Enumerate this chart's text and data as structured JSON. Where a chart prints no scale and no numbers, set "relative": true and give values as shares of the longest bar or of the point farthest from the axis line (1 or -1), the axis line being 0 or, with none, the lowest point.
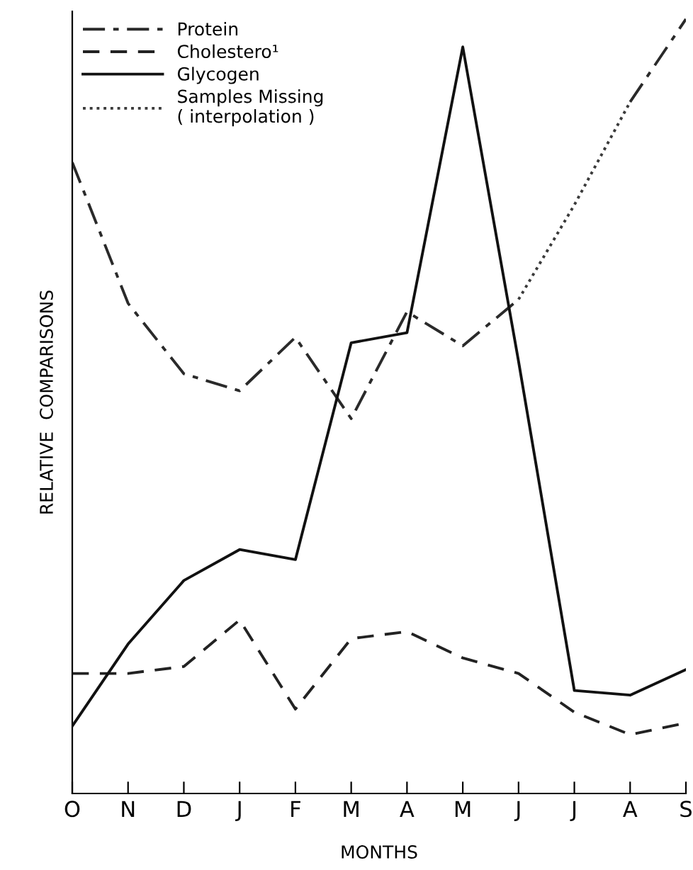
{
  "chart_data": {
    "type": "line",
    "relative": true,
    "xlabel": "MONTHS",
    "ylabel": "RELATIVE  COMPARISONS",
    "categories": [
      "O",
      "N",
      "D",
      "J",
      "F",
      "M",
      "A",
      "M",
      "J",
      "J",
      "A",
      "S"
    ],
    "series": [
      {
        "name": "Protein",
        "color": "#2a2a2a",
        "line_style": "dashdot",
        "values": [
          0.815,
          0.633,
          0.542,
          0.52,
          0.589,
          0.484,
          0.622,
          0.578,
          0.638,
          null,
          0.893,
          1
        ]
      },
      {
        "name": "Cholestero¹",
        "color": "#222222",
        "line_style": "dashed",
        "values": [
          0.155,
          0.155,
          0.164,
          0.224,
          0.109,
          0.2,
          0.209,
          0.175,
          0.155,
          0.105,
          0.076,
          0.091
        ]
      },
      {
        "name": "Glycogen",
        "color": "#111111",
        "line_style": "solid",
        "values": [
          0.087,
          0.193,
          0.275,
          0.315,
          0.302,
          0.582,
          0.595,
          0.964,
          0.558,
          0.133,
          0.127,
          0.16
        ]
      },
      {
        "name": "Samples Missing\n( interpolation )",
        "color": "#3a3a3a",
        "line_style": "dotted",
        "values": [
          null,
          null,
          null,
          null,
          null,
          null,
          null,
          null,
          0.638,
          0.76,
          0.893,
          null
        ]
      }
    ],
    "legend": "top left",
    "grid": false,
    "marker": "none"
  }
}
